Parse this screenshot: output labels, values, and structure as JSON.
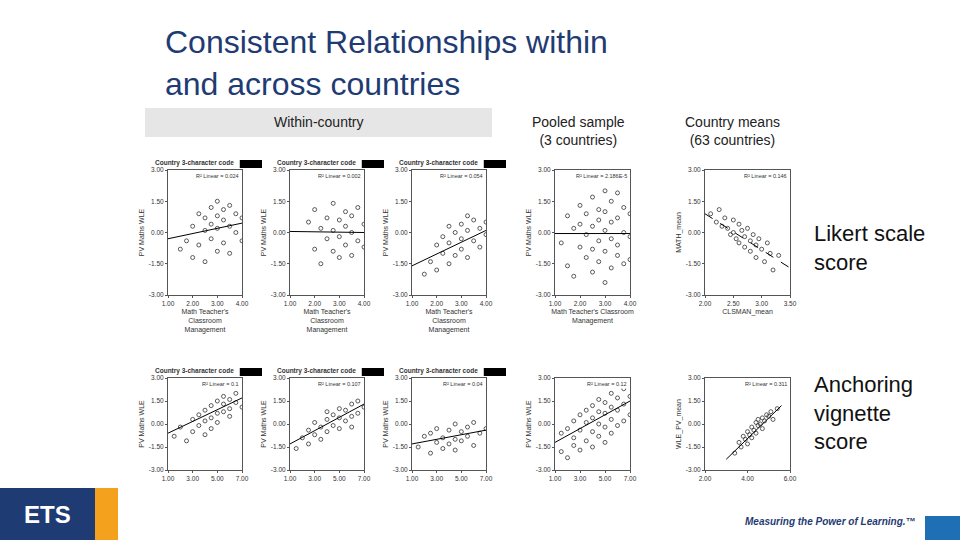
{
  "slide": {
    "title_lines": [
      "Consistent Relationships within",
      "and across countries"
    ],
    "headers": {
      "within": "Within-country",
      "pooled": [
        "Pooled sample",
        "(3 countries)"
      ],
      "means": [
        "Country means",
        "(63 countries)"
      ]
    },
    "row_labels": [
      [
        "Likert scale",
        "score"
      ],
      [
        "Anchoring",
        "vignette",
        "score"
      ]
    ],
    "footer": {
      "logo": "ETS",
      "tagline": "Measuring the Power of Learning.™"
    }
  },
  "chart_data": [
    {
      "type": "scatter",
      "title": "Country 3-character code",
      "r2_label": "R² Linear = 0.024",
      "x_label": [
        "Math Teacher's",
        "Classroom",
        "Management"
      ],
      "y_label": "PV Maths WLE",
      "x": [
        1.5,
        1.75,
        2.0,
        2.0,
        2.25,
        2.25,
        2.5,
        2.5,
        2.5,
        2.75,
        2.75,
        2.75,
        3.0,
        3.0,
        3.0,
        3.0,
        3.25,
        3.25,
        3.25,
        3.5,
        3.5,
        3.5,
        3.75,
        3.75,
        4.0,
        4.0
      ],
      "y": [
        -0.8,
        -0.4,
        -1.2,
        0.3,
        -0.6,
        0.9,
        -1.4,
        0.1,
        0.7,
        -0.3,
        1.2,
        0.4,
        -0.9,
        0.2,
        0.8,
        1.5,
        -0.5,
        0.6,
        1.1,
        -1.0,
        0.3,
        1.3,
        0.0,
        0.9,
        -0.4,
        0.7
      ],
      "fit_line": {
        "x": [
          1,
          4
        ],
        "y": [
          -0.3,
          0.45
        ]
      },
      "xlim": [
        1,
        4
      ],
      "ylim": [
        -3,
        3
      ],
      "xticks": [
        {
          "value": 1,
          "label": "1.00"
        },
        {
          "value": 2,
          "label": "2.00"
        },
        {
          "value": 3,
          "label": "3.00"
        },
        {
          "value": 4,
          "label": "4.00"
        }
      ],
      "yticks": [
        {
          "value": -3,
          "label": "-3.00"
        },
        {
          "value": -1.5,
          "label": "-1.50"
        },
        {
          "value": 0,
          "label": "0.00"
        },
        {
          "value": 1.5,
          "label": "1.50"
        },
        {
          "value": 3,
          "label": "3.00"
        }
      ],
      "marker": "circle-open",
      "line_style": "solid",
      "color": "#333333"
    },
    {
      "type": "scatter",
      "title": "Country 3-character code",
      "r2_label": "R² Linear = 0.002",
      "x_label": [
        "Math Teacher's",
        "Classroom",
        "Management"
      ],
      "y_label": "PV Maths WLE",
      "x": [
        1.75,
        2.0,
        2.0,
        2.25,
        2.25,
        2.5,
        2.5,
        2.75,
        2.75,
        2.75,
        3.0,
        3.0,
        3.0,
        3.25,
        3.25,
        3.25,
        3.5,
        3.5,
        3.5,
        3.75,
        3.75,
        4.0,
        4.0
      ],
      "y": [
        0.5,
        -0.8,
        1.1,
        0.2,
        -1.5,
        0.7,
        -0.3,
        1.4,
        -0.9,
        0.1,
        0.6,
        -1.2,
        -0.2,
        1.0,
        -0.6,
        0.3,
        -1.1,
        0.8,
        0.0,
        -0.4,
        1.2,
        0.4,
        -0.7
      ],
      "fit_line": {
        "x": [
          1,
          4
        ],
        "y": [
          0.05,
          0.0
        ]
      },
      "xlim": [
        1,
        4
      ],
      "ylim": [
        -3,
        3
      ],
      "xticks": [
        {
          "value": 1,
          "label": "1.00"
        },
        {
          "value": 2,
          "label": "2.00"
        },
        {
          "value": 3,
          "label": "3.00"
        },
        {
          "value": 4,
          "label": "4.00"
        }
      ],
      "yticks": [
        {
          "value": -3,
          "label": "-3.00"
        },
        {
          "value": -1.5,
          "label": "-1.50"
        },
        {
          "value": 0,
          "label": "0.00"
        },
        {
          "value": 1.5,
          "label": "1.50"
        },
        {
          "value": 3,
          "label": "3.00"
        }
      ],
      "marker": "circle-open",
      "line_style": "solid",
      "color": "#333333"
    },
    {
      "type": "scatter",
      "title": "Country 3-character code",
      "r2_label": "R² Linear = 0.054",
      "x_label": [
        "Math Teacher's",
        "Classroom",
        "Management"
      ],
      "y_label": "PV Maths WLE",
      "x": [
        1.5,
        1.75,
        2.0,
        2.0,
        2.25,
        2.25,
        2.5,
        2.5,
        2.5,
        2.75,
        2.75,
        3.0,
        3.0,
        3.0,
        3.25,
        3.25,
        3.25,
        3.5,
        3.5,
        3.75,
        3.75,
        4.0,
        4.0
      ],
      "y": [
        -2.0,
        -1.4,
        -1.8,
        -0.6,
        -1.0,
        -0.2,
        -1.5,
        -0.5,
        0.3,
        -1.1,
        0.0,
        -0.8,
        0.4,
        -0.3,
        -1.2,
        0.1,
        0.8,
        -0.4,
        0.6,
        -0.7,
        0.2,
        0.5,
        -0.1
      ],
      "fit_line": {
        "x": [
          1,
          4
        ],
        "y": [
          -1.6,
          0.1
        ]
      },
      "xlim": [
        1,
        4
      ],
      "ylim": [
        -3,
        3
      ],
      "xticks": [
        {
          "value": 1,
          "label": "1.00"
        },
        {
          "value": 2,
          "label": "2.00"
        },
        {
          "value": 3,
          "label": "3.00"
        },
        {
          "value": 4,
          "label": "4.00"
        }
      ],
      "yticks": [
        {
          "value": -3,
          "label": "-3.00"
        },
        {
          "value": -1.5,
          "label": "-1.50"
        },
        {
          "value": 0,
          "label": "0.00"
        },
        {
          "value": 1.5,
          "label": "1.50"
        },
        {
          "value": 3,
          "label": "3.00"
        }
      ],
      "marker": "circle-open",
      "line_style": "solid",
      "color": "#333333"
    },
    {
      "type": "scatter",
      "r2_label": "R² Linear = 2.186E-5",
      "x_label": [
        "Math Teacher's Classroom",
        "Management"
      ],
      "y_label": "PV Maths WLE",
      "x": [
        1.25,
        1.5,
        1.5,
        1.75,
        1.75,
        2.0,
        2.0,
        2.0,
        2.25,
        2.25,
        2.25,
        2.5,
        2.5,
        2.5,
        2.5,
        2.75,
        2.75,
        2.75,
        2.75,
        3.0,
        3.0,
        3.0,
        3.0,
        3.0,
        3.25,
        3.25,
        3.25,
        3.25,
        3.5,
        3.5,
        3.5,
        3.5,
        3.75,
        3.75,
        3.75,
        4.0,
        4.0,
        4.0
      ],
      "y": [
        -0.5,
        0.8,
        -1.6,
        0.2,
        -2.1,
        1.3,
        -0.7,
        0.4,
        -1.2,
        0.9,
        -0.1,
        1.7,
        -1.9,
        0.3,
        -0.8,
        1.1,
        -0.4,
        0.6,
        -1.4,
        2.0,
        -2.4,
        0.1,
        -0.9,
        1.0,
        -1.7,
        0.5,
        1.5,
        -0.3,
        -1.1,
        0.7,
        1.9,
        -0.6,
        0.0,
        -1.5,
        1.2,
        -0.2,
        0.9,
        -1.3
      ],
      "fit_line": {
        "x": [
          1,
          4
        ],
        "y": [
          -0.05,
          -0.05
        ]
      },
      "xlim": [
        1,
        4
      ],
      "ylim": [
        -3,
        3
      ],
      "xticks": [
        {
          "value": 1,
          "label": "1.00"
        },
        {
          "value": 2,
          "label": "2.00"
        },
        {
          "value": 3,
          "label": "3.00"
        },
        {
          "value": 4,
          "label": "4.00"
        }
      ],
      "yticks": [
        {
          "value": -3,
          "label": "-3.00"
        },
        {
          "value": -1.5,
          "label": "-1.50"
        },
        {
          "value": 0,
          "label": "0.00"
        },
        {
          "value": 1.5,
          "label": "1.50"
        },
        {
          "value": 3,
          "label": "3.00"
        }
      ],
      "marker": "circle-open",
      "line_style": "solid",
      "color": "#333333"
    },
    {
      "type": "scatter",
      "r2_label": "R² Linear = 0.146",
      "x_label": [
        "CLSMAN_mean"
      ],
      "y_label": "MATH_mean",
      "x": [
        2.1,
        2.2,
        2.25,
        2.3,
        2.35,
        2.4,
        2.45,
        2.5,
        2.5,
        2.55,
        2.6,
        2.6,
        2.65,
        2.7,
        2.7,
        2.75,
        2.8,
        2.8,
        2.85,
        2.9,
        2.9,
        2.95,
        3.0,
        3.05,
        3.1,
        3.15,
        3.2,
        3.3
      ],
      "y": [
        0.9,
        0.5,
        1.1,
        0.3,
        0.7,
        0.2,
        -0.1,
        0.6,
        0.0,
        -0.3,
        0.4,
        -0.5,
        0.1,
        -0.2,
        -0.7,
        0.2,
        -0.4,
        -0.9,
        -0.1,
        -0.6,
        -1.2,
        -0.3,
        -0.8,
        -1.4,
        -0.5,
        -1.0,
        -1.8,
        -1.1
      ],
      "fit_line": {
        "x": [
          2.0,
          3.5
        ],
        "y": [
          0.9,
          -1.7
        ]
      },
      "xlim": [
        2,
        3.5
      ],
      "ylim": [
        -3,
        3
      ],
      "xticks": [
        {
          "value": 2,
          "label": "2.00"
        },
        {
          "value": 2.5,
          "label": "2.50"
        },
        {
          "value": 3,
          "label": "3.00"
        },
        {
          "value": 3.5,
          "label": "3.50"
        }
      ],
      "yticks": [
        {
          "value": -3,
          "label": "-3.00"
        },
        {
          "value": -1.5,
          "label": "-1.50"
        },
        {
          "value": 0,
          "label": "0.00"
        },
        {
          "value": 1.5,
          "label": "1.50"
        },
        {
          "value": 3,
          "label": "3.00"
        }
      ],
      "marker": "circle-open",
      "line_style": "dashed",
      "color": "#333333"
    },
    {
      "type": "scatter",
      "title": "Country 3-character code",
      "r2_label": "R² Linear = 0.1",
      "y_label": "PV Maths WLE",
      "x": [
        1.5,
        2.0,
        2.5,
        3.0,
        3.0,
        3.5,
        3.5,
        4.0,
        4.0,
        4.0,
        4.5,
        4.5,
        4.5,
        5.0,
        5.0,
        5.0,
        5.5,
        5.5,
        5.5,
        6.0,
        6.0,
        6.0,
        6.5,
        6.5,
        7.0
      ],
      "y": [
        -0.8,
        -0.2,
        -1.1,
        0.3,
        -0.5,
        0.6,
        -0.1,
        0.9,
        0.2,
        -0.7,
        1.2,
        0.4,
        -0.3,
        1.5,
        0.7,
        0.1,
        1.3,
        0.8,
        1.8,
        1.0,
        1.6,
        0.5,
        1.4,
        2.0,
        1.1
      ],
      "fit_line": {
        "x": [
          1,
          7
        ],
        "y": [
          -0.6,
          1.7
        ]
      },
      "xlim": [
        1,
        7
      ],
      "ylim": [
        -3,
        3
      ],
      "xticks": [
        {
          "value": 1,
          "label": "1.00"
        },
        {
          "value": 3,
          "label": "3.00"
        },
        {
          "value": 5,
          "label": "5.00"
        },
        {
          "value": 7,
          "label": "7.00"
        }
      ],
      "yticks": [
        {
          "value": -3,
          "label": "-3.00"
        },
        {
          "value": -1.5,
          "label": "-1.50"
        },
        {
          "value": 0,
          "label": "0.00"
        },
        {
          "value": 1.5,
          "label": "1.50"
        },
        {
          "value": 3,
          "label": "3.00"
        }
      ],
      "marker": "circle-open",
      "line_style": "solid",
      "color": "#333333"
    },
    {
      "type": "scatter",
      "title": "Country 3-character code",
      "r2_label": "R² Linear = 0.107",
      "y_label": "PV Maths WLE",
      "x": [
        1.5,
        2.0,
        2.5,
        2.5,
        3.0,
        3.0,
        3.5,
        3.5,
        4.0,
        4.0,
        4.0,
        4.5,
        4.5,
        5.0,
        5.0,
        5.0,
        5.5,
        5.5,
        6.0,
        6.0,
        6.0,
        6.5,
        6.5,
        7.0
      ],
      "y": [
        -1.6,
        -0.9,
        -1.3,
        -0.4,
        -0.7,
        0.1,
        -1.0,
        -0.2,
        -0.5,
        0.3,
        0.8,
        -0.1,
        0.6,
        -0.3,
        0.4,
        1.0,
        0.2,
        0.9,
        0.5,
        1.3,
        -0.2,
        0.7,
        1.5,
        1.1
      ],
      "fit_line": {
        "x": [
          1,
          7
        ],
        "y": [
          -1.3,
          1.3
        ]
      },
      "xlim": [
        1,
        7
      ],
      "ylim": [
        -3,
        3
      ],
      "xticks": [
        {
          "value": 1,
          "label": "1.00"
        },
        {
          "value": 3,
          "label": "3.00"
        },
        {
          "value": 5,
          "label": "5.00"
        },
        {
          "value": 7,
          "label": "7.00"
        }
      ],
      "yticks": [
        {
          "value": -3,
          "label": "-3.00"
        },
        {
          "value": -1.5,
          "label": "-1.50"
        },
        {
          "value": 0,
          "label": "0.00"
        },
        {
          "value": 1.5,
          "label": "1.50"
        },
        {
          "value": 3,
          "label": "3.00"
        }
      ],
      "marker": "circle-open",
      "line_style": "solid",
      "color": "#333333"
    },
    {
      "type": "scatter",
      "title": "Country 3-character code",
      "r2_label": "R² Linear = 0.04",
      "y_label": "PV Maths WLE",
      "x": [
        1.5,
        2.0,
        2.5,
        2.5,
        3.0,
        3.0,
        3.5,
        3.5,
        4.0,
        4.0,
        4.5,
        4.5,
        4.5,
        5.0,
        5.0,
        5.5,
        5.5,
        6.0,
        6.0,
        6.5,
        7.0
      ],
      "y": [
        -1.5,
        -0.8,
        -1.9,
        -0.6,
        -1.2,
        -0.3,
        -1.6,
        -0.9,
        -0.4,
        -1.3,
        -1.0,
        0.0,
        -1.7,
        -0.5,
        -1.1,
        -0.2,
        -0.8,
        -1.4,
        0.1,
        -0.6,
        -0.3
      ],
      "fit_line": {
        "x": [
          1,
          7
        ],
        "y": [
          -1.3,
          -0.4
        ]
      },
      "xlim": [
        1,
        7
      ],
      "ylim": [
        -3,
        3
      ],
      "xticks": [
        {
          "value": 1,
          "label": "1.00"
        },
        {
          "value": 3,
          "label": "3.00"
        },
        {
          "value": 5,
          "label": "5.00"
        },
        {
          "value": 7,
          "label": "7.00"
        }
      ],
      "yticks": [
        {
          "value": -3,
          "label": "-3.00"
        },
        {
          "value": -1.5,
          "label": "-1.50"
        },
        {
          "value": 0,
          "label": "0.00"
        },
        {
          "value": 1.5,
          "label": "1.50"
        },
        {
          "value": 3,
          "label": "3.00"
        }
      ],
      "marker": "circle-open",
      "line_style": "solid",
      "color": "#333333"
    },
    {
      "type": "scatter",
      "r2_label": "R² Linear = 0.12",
      "y_label": "PV Maths WLE",
      "x": [
        1.5,
        1.5,
        2.0,
        2.0,
        2.5,
        2.5,
        2.5,
        3.0,
        3.0,
        3.0,
        3.5,
        3.5,
        3.5,
        4.0,
        4.0,
        4.0,
        4.0,
        4.5,
        4.5,
        4.5,
        4.5,
        5.0,
        5.0,
        5.0,
        5.0,
        5.5,
        5.5,
        5.5,
        5.5,
        6.0,
        6.0,
        6.0,
        6.5,
        6.5,
        6.5,
        7.0,
        7.0
      ],
      "y": [
        -1.8,
        -0.6,
        -2.2,
        -0.3,
        -1.4,
        0.2,
        -0.9,
        -1.7,
        -0.4,
        0.6,
        -1.1,
        0.1,
        0.9,
        -1.5,
        -0.5,
        0.4,
        1.2,
        -0.8,
        0.0,
        0.8,
        1.6,
        -1.2,
        -0.2,
        0.7,
        1.4,
        -0.6,
        0.3,
        1.1,
        2.0,
        -0.1,
        0.9,
        1.7,
        0.2,
        1.3,
        2.3,
        0.6,
        1.8
      ],
      "fit_line": {
        "x": [
          1,
          7
        ],
        "y": [
          -1.2,
          1.5
        ]
      },
      "xlim": [
        1,
        7
      ],
      "ylim": [
        -3,
        3
      ],
      "xticks": [
        {
          "value": 1,
          "label": "1.00"
        },
        {
          "value": 3,
          "label": "3.00"
        },
        {
          "value": 5,
          "label": "5.00"
        },
        {
          "value": 7,
          "label": "7.00"
        }
      ],
      "yticks": [
        {
          "value": -3,
          "label": "-3.00"
        },
        {
          "value": -1.5,
          "label": "-1.50"
        },
        {
          "value": 0,
          "label": "0.00"
        },
        {
          "value": 1.5,
          "label": "1.50"
        },
        {
          "value": 3,
          "label": "3.00"
        }
      ],
      "marker": "circle-open",
      "line_style": "solid",
      "color": "#333333"
    },
    {
      "type": "scatter",
      "r2_label": "R² Linear = 0.311",
      "y_label": "WLE_PV_mean",
      "x": [
        3.4,
        3.6,
        3.7,
        3.8,
        3.9,
        4.0,
        4.0,
        4.1,
        4.2,
        4.2,
        4.3,
        4.4,
        4.4,
        4.5,
        4.5,
        4.6,
        4.7,
        4.7,
        4.8,
        4.9,
        5.0,
        5.1,
        5.2,
        5.4
      ],
      "y": [
        -1.9,
        -1.2,
        -1.5,
        -0.8,
        -1.0,
        -0.5,
        -1.3,
        -0.7,
        -0.2,
        -0.9,
        -0.4,
        0.1,
        -0.6,
        -0.1,
        0.3,
        0.0,
        0.4,
        -0.3,
        0.2,
        0.6,
        0.5,
        0.8,
        0.3,
        1.0
      ],
      "fit_line": {
        "x": [
          3.0,
          5.6
        ],
        "y": [
          -2.3,
          1.2
        ]
      },
      "xlim": [
        2,
        6
      ],
      "ylim": [
        -3,
        3
      ],
      "xticks": [
        {
          "value": 2,
          "label": "2.00"
        },
        {
          "value": 4,
          "label": "4.00"
        },
        {
          "value": 6,
          "label": "6.00"
        }
      ],
      "yticks": [
        {
          "value": -3,
          "label": "-3.00"
        },
        {
          "value": -1.5,
          "label": "-1.50"
        },
        {
          "value": 0,
          "label": "0.00"
        },
        {
          "value": 1.5,
          "label": "1.50"
        },
        {
          "value": 3,
          "label": "3.00"
        }
      ],
      "marker": "circle-open",
      "line_style": "solid",
      "color": "#333333"
    }
  ]
}
